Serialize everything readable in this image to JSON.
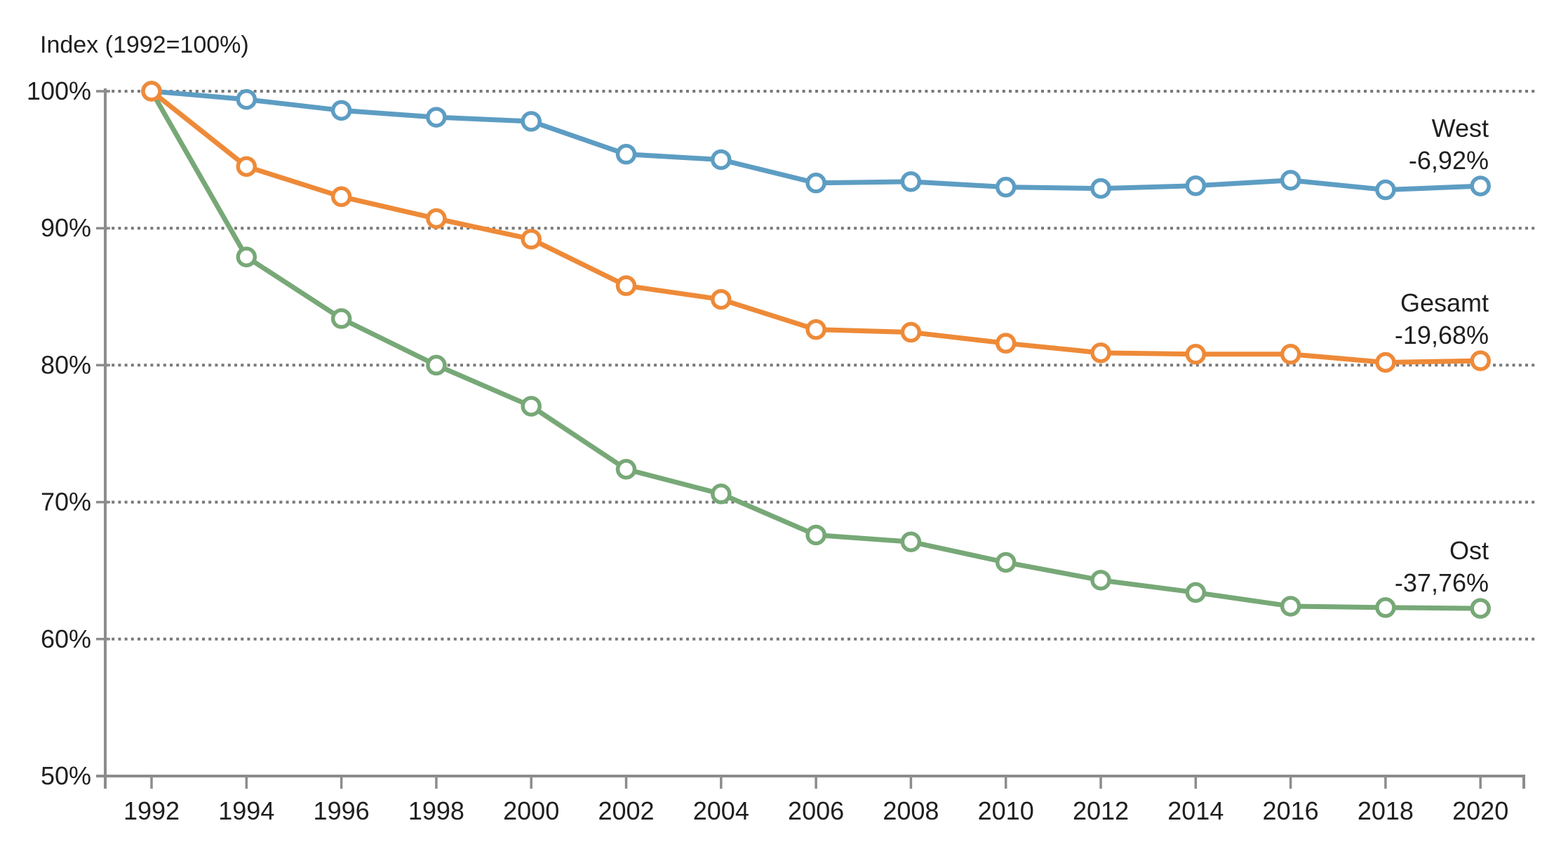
{
  "chart_data": {
    "type": "line",
    "title": "Index (1992=100%)",
    "categories": [
      "1992",
      "1994",
      "1996",
      "1998",
      "2000",
      "2002",
      "2004",
      "2006",
      "2008",
      "2010",
      "2012",
      "2014",
      "2016",
      "2018",
      "2020"
    ],
    "x_start_year": 1992,
    "x_step_years": 2,
    "ylim": [
      50,
      100
    ],
    "y_ticks": [
      100,
      90,
      80,
      70,
      60,
      50
    ],
    "y_tick_labels": [
      "100%",
      "90%",
      "80%",
      "70%",
      "60%",
      "50%"
    ],
    "grid_values": [
      100,
      90,
      80,
      70,
      60
    ],
    "grid": "dotted-horizontal",
    "legend_position": "right-of-line-ends",
    "marker": "open-circle",
    "series": [
      {
        "name": "West",
        "delta_label": "-6,92%",
        "color": "#5d9dc3",
        "values": [
          100,
          99.4,
          98.6,
          98.1,
          97.8,
          95.4,
          95.0,
          93.3,
          93.4,
          93.0,
          92.9,
          93.1,
          93.5,
          92.8,
          93.08
        ]
      },
      {
        "name": "Gesamt",
        "delta_label": "-19,68%",
        "color": "#ee8a38",
        "values": [
          100,
          94.5,
          92.3,
          90.7,
          89.2,
          85.8,
          84.8,
          82.6,
          82.4,
          81.6,
          80.9,
          80.8,
          80.8,
          80.2,
          80.32
        ]
      },
      {
        "name": "Ost",
        "delta_label": "-37,76%",
        "color": "#77a877",
        "values": [
          100,
          87.9,
          83.4,
          80.0,
          77.0,
          72.4,
          70.6,
          67.6,
          67.1,
          65.6,
          64.3,
          63.4,
          62.4,
          62.3,
          62.24
        ]
      }
    ],
    "colors": {
      "axis": "#8c8c8c",
      "grid": "#787878",
      "text": "#1f1f1f",
      "background": "#ffffff"
    }
  }
}
